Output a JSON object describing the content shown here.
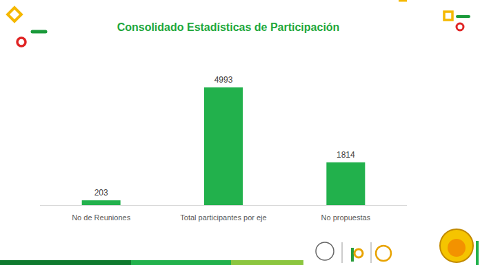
{
  "chart_data": {
    "type": "bar",
    "title": "Consolidado Estadísticas de Participación",
    "categories": [
      "No de Reuniones",
      "Total participantes por eje",
      "No propuestas"
    ],
    "values": [
      203,
      4993,
      1814
    ],
    "color": "#22b14c",
    "ylim": [
      0,
      5000
    ],
    "grid": false,
    "data_labels": true,
    "tick_labels": "x"
  }
}
